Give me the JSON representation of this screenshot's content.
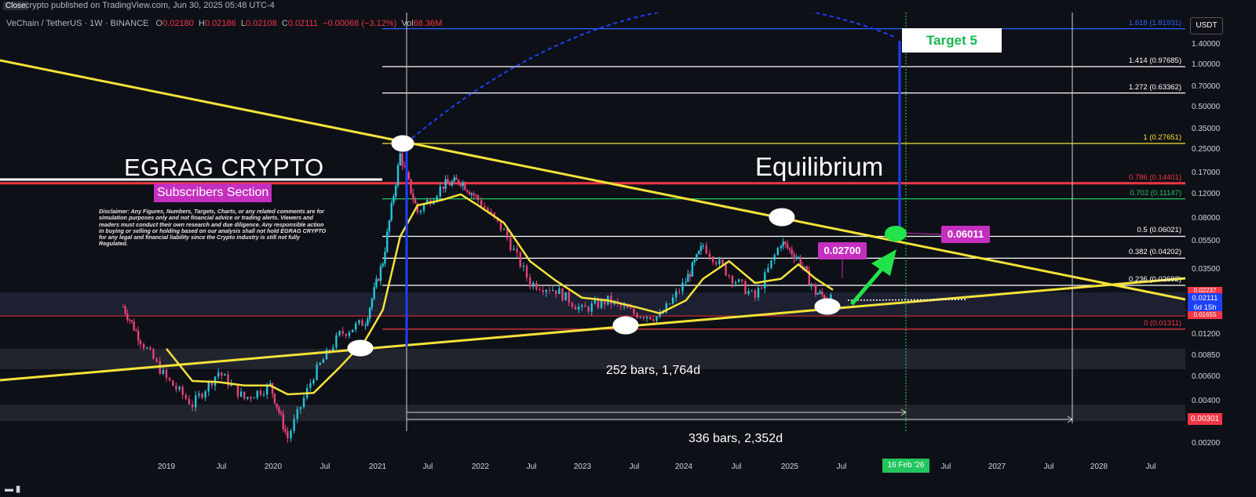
{
  "header": {
    "close_label": "Close",
    "published": "crypto published on TradingView.com, Jun 30, 2025 05:48 UTC-4"
  },
  "legend": {
    "symbol": "VeChain / TetherUS · 1W · BINANCE",
    "o_label": "O",
    "o": "0.02180",
    "h_label": "H",
    "h": "0.02186",
    "l_label": "L",
    "l": "0.02108",
    "c_label": "C",
    "c": "0.02111",
    "change": "−0.00068 (−3.12%)",
    "vol_label": "Vol",
    "vol": "68.36M"
  },
  "annotations": {
    "egrag": "EGRAG CRYPTO",
    "subscribers": "Subscribers Section",
    "disclaimer": "Disclaimer: Any Figures, Numbers, Targets, Charts, or any related comments are for simulation purposes only and not financial advice or trading alerts. Viewers and readers must conduct their own research and due diligence. Any responsible action in buying or selling or holding based on our analysis shall not hold EGRAG CRYPTO for any legal and financial liability since the Crypto industry is still not fully Regulated.",
    "equilibrium": "Equilibrium",
    "target5": "Target 5",
    "label_0270": "0.02700",
    "label_0601": "0.06011",
    "bars1": "252 bars, 1,764d",
    "bars2": "336 bars, 2,352d"
  },
  "price_axis": {
    "currency": "USDT",
    "ticks": [
      "1.40000",
      "1.00000",
      "0.70000",
      "0.50000",
      "0.35000",
      "0.25000",
      "0.17000",
      "0.12000",
      "0.08000",
      "0.05500",
      "0.03500",
      "0.01800",
      "0.01200",
      "0.00850",
      "0.00600",
      "0.00400",
      "0.00200"
    ],
    "current_price": "0.02111",
    "countdown": "6d 15h",
    "tag_above": "0.02237",
    "tag_below": "0.01655",
    "low_tag": "0.00301"
  },
  "time_axis": {
    "ticks": [
      "2019",
      "Jul",
      "2020",
      "Jul",
      "2021",
      "Jul",
      "2022",
      "Jul",
      "2023",
      "Jul",
      "2024",
      "Jul",
      "2025",
      "Jul",
      "Jul",
      "2027",
      "Jul",
      "2028",
      "Jul"
    ],
    "cursor_label": "16 Feb '26"
  },
  "colors": {
    "background": "#0e1017",
    "up": "#26c6da",
    "down": "#ec407a",
    "trendline": "#f5e23a",
    "ma": "#f5e23a",
    "fib_white": "#ffffff",
    "fib_red": "#f23645",
    "fib_green": "#22c55e",
    "fib_blue": "#2962ff",
    "arc": "#1e40ff",
    "arrow": "#22e34a"
  },
  "chart_data": {
    "type": "line",
    "title": "",
    "xlabel": "",
    "ylabel": "",
    "y_scale": "log",
    "ylim": [
      0.0017,
      1.9
    ],
    "x": [
      "2018-08",
      "2018-10",
      "2019-01",
      "2019-04",
      "2019-07",
      "2019-10",
      "2020-01",
      "2020-03",
      "2020-06",
      "2020-09",
      "2020-12",
      "2021-02",
      "2021-04",
      "2021-06",
      "2021-09",
      "2021-11",
      "2022-01",
      "2022-04",
      "2022-07",
      "2022-10",
      "2023-01",
      "2023-04",
      "2023-07",
      "2023-10",
      "2024-01",
      "2024-03",
      "2024-06",
      "2024-09",
      "2024-12",
      "2025-02",
      "2025-04",
      "2025-06"
    ],
    "series": [
      {
        "values": [
          0.019,
          0.011,
          0.0058,
          0.0038,
          0.0065,
          0.0042,
          0.0052,
          0.0022,
          0.0062,
          0.012,
          0.015,
          0.04,
          0.23,
          0.09,
          0.14,
          0.15,
          0.11,
          0.065,
          0.028,
          0.025,
          0.018,
          0.021,
          0.017,
          0.016,
          0.029,
          0.052,
          0.032,
          0.022,
          0.055,
          0.042,
          0.024,
          0.021
        ]
      },
      {
        "values": [
          null,
          null,
          0.0095,
          0.0056,
          0.0055,
          0.0052,
          0.0052,
          0.0045,
          0.0046,
          0.007,
          0.011,
          0.018,
          0.06,
          0.1,
          0.11,
          0.12,
          0.1,
          0.075,
          0.04,
          0.029,
          0.022,
          0.021,
          0.019,
          0.017,
          0.021,
          0.03,
          0.04,
          0.028,
          0.03,
          0.038,
          0.03,
          0.025
        ]
      }
    ],
    "fib_levels": [
      {
        "label": "1.618 (1.81931)",
        "value": 1.81931
      },
      {
        "label": "1.414 (0.97685)",
        "value": 0.97685
      },
      {
        "label": "1.272 (0.63362)",
        "value": 0.63362
      },
      {
        "label": "1 (0.27651)",
        "value": 0.27651
      },
      {
        "label": "0.786 (0.14401)",
        "value": 0.14401
      },
      {
        "label": "0.702 (0.11147)",
        "value": 0.11147
      },
      {
        "label": "0.5 (0.06021)",
        "value": 0.06021
      },
      {
        "label": "0.382 (0.04202)",
        "value": 0.04202
      },
      {
        "label": "0.236 (0.02692)",
        "value": 0.02692
      },
      {
        "label": "0 (0.01311)",
        "value": 0.01311
      }
    ],
    "grid": false
  }
}
